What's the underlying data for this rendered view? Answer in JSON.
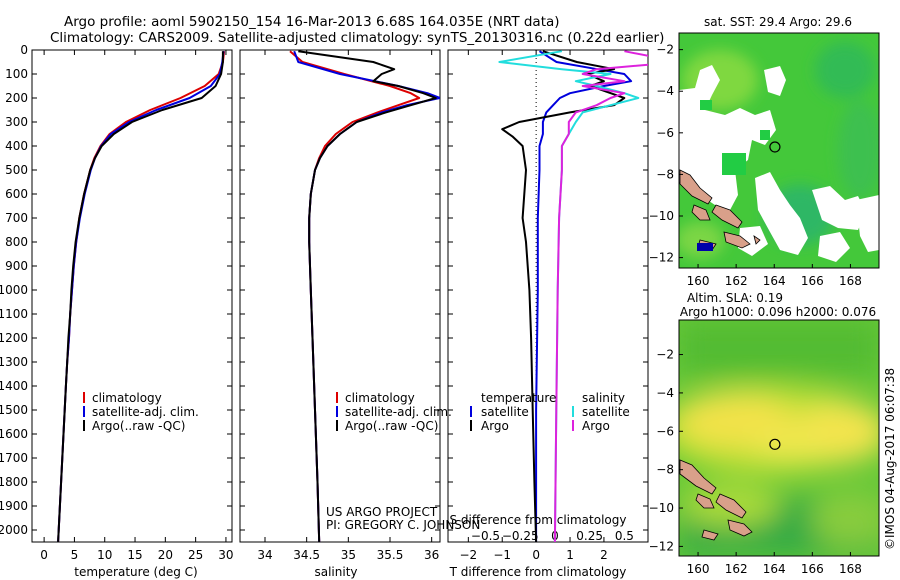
{
  "header": {
    "line1": "Argo profile: aoml 5902150_154 16-Mar-2013 6.68S 164.035E (NRT data)",
    "line2": "Climatology: CARS2009. Satellite-adjusted climatology: synTS_20130316.nc (0.22d earlier)"
  },
  "footer": {
    "project": "US ARGO PROJECT",
    "pi": "PI: GREGORY C. JOHNSON",
    "stamp": "©IMOS 04-Aug-2017 06:07:38"
  },
  "colors": {
    "climatology": "#dd0000",
    "satellite": "#0000dd",
    "argo": "#000000",
    "sal_satellite": "#22dddd",
    "sal_argo": "#dd22dd"
  },
  "chart_data": [
    {
      "id": "temperature",
      "type": "line",
      "xlabel": "temperature (deg C)",
      "ylabel": "",
      "xlim": [
        -2,
        31
      ],
      "ylim": [
        2050,
        0
      ],
      "xticks": [
        0,
        5,
        10,
        15,
        20,
        25,
        30
      ],
      "yticks": [
        0,
        100,
        200,
        300,
        400,
        500,
        600,
        700,
        800,
        900,
        1000,
        1100,
        1200,
        1300,
        1400,
        1500,
        1600,
        1700,
        1800,
        1900,
        2000
      ],
      "legend": [
        "climatology",
        "satellite-adj. clim.",
        "Argo(..raw -QC)"
      ],
      "legend_position": "bottom-left",
      "series": [
        {
          "name": "climatology",
          "color": "#dd0000",
          "depth": [
            5,
            50,
            100,
            150,
            200,
            250,
            300,
            350,
            400,
            450,
            500,
            600,
            700,
            800,
            900,
            1000,
            1100,
            1200,
            1300,
            1400,
            1500,
            1600,
            1700,
            1800,
            1900,
            2000,
            2050
          ],
          "values": [
            29.7,
            29.5,
            28.8,
            26.5,
            22.5,
            17.5,
            13.5,
            10.8,
            9.3,
            8.3,
            7.6,
            6.6,
            5.8,
            5.3,
            4.9,
            4.6,
            4.3,
            4.1,
            3.8,
            3.6,
            3.4,
            3.2,
            3.0,
            2.8,
            2.6,
            2.4,
            2.3
          ]
        },
        {
          "name": "satellite-adj. clim.",
          "color": "#0000dd",
          "depth": [
            5,
            50,
            100,
            150,
            200,
            250,
            300,
            350,
            400,
            450,
            500,
            600,
            700,
            800,
            900,
            1000,
            1100,
            1200,
            1300,
            1400,
            1500,
            1600,
            1700,
            1800,
            1900,
            2000,
            2050
          ],
          "values": [
            29.6,
            29.4,
            29.0,
            27.5,
            24.0,
            18.5,
            14.0,
            11.0,
            9.4,
            8.4,
            7.7,
            6.7,
            5.9,
            5.3,
            4.9,
            4.6,
            4.3,
            4.1,
            3.8,
            3.6,
            3.4,
            3.2,
            3.0,
            2.8,
            2.6,
            2.4,
            2.3
          ]
        },
        {
          "name": "Argo(..raw -QC)",
          "color": "#000000",
          "depth": [
            5,
            50,
            100,
            150,
            200,
            250,
            300,
            350,
            400,
            450,
            500,
            600,
            700,
            800,
            900,
            1000,
            1100,
            1200,
            1300,
            1400,
            1500,
            1600,
            1700,
            1800,
            1900,
            2000,
            2050
          ],
          "values": [
            29.5,
            29.5,
            29.2,
            28.3,
            26.0,
            19.5,
            14.5,
            11.5,
            9.5,
            8.4,
            7.6,
            6.6,
            5.8,
            5.2,
            4.8,
            4.5,
            4.3,
            4.0,
            3.8,
            3.6,
            3.4,
            3.2,
            3.0,
            2.8,
            2.6,
            2.4,
            2.3
          ]
        }
      ]
    },
    {
      "id": "salinity",
      "type": "line",
      "xlabel": "salinity",
      "xlim": [
        33.7,
        36.1
      ],
      "ylim": [
        2050,
        0
      ],
      "xticks": [
        34,
        34.5,
        35,
        35.5,
        36
      ],
      "xticklabels": [
        "34",
        "34.5",
        "35",
        "35.5",
        "36"
      ],
      "legend": [
        "climatology",
        "satellite-adj. clim.",
        "Argo(..raw -QC)"
      ],
      "legend_position": "bottom-right",
      "series": [
        {
          "name": "climatology",
          "color": "#dd0000",
          "depth": [
            5,
            50,
            100,
            150,
            180,
            200,
            230,
            260,
            300,
            350,
            400,
            450,
            500,
            600,
            700,
            800,
            1000,
            1200,
            1500,
            1800,
            2050
          ],
          "values": [
            34.3,
            34.45,
            34.95,
            35.5,
            35.75,
            35.85,
            35.6,
            35.35,
            35.05,
            34.85,
            34.72,
            34.65,
            34.6,
            34.55,
            34.53,
            34.53,
            34.55,
            34.57,
            34.6,
            34.63,
            34.65
          ]
        },
        {
          "name": "satellite-adj. clim.",
          "color": "#0000dd",
          "depth": [
            5,
            50,
            100,
            150,
            180,
            200,
            230,
            260,
            300,
            350,
            400,
            450,
            500,
            600,
            700,
            800,
            1000,
            1200,
            1500,
            1800,
            2050
          ],
          "values": [
            34.35,
            34.4,
            34.9,
            35.6,
            35.95,
            36.1,
            35.7,
            35.4,
            35.1,
            34.9,
            34.75,
            34.66,
            34.6,
            34.55,
            34.53,
            34.53,
            34.55,
            34.57,
            34.6,
            34.63,
            34.65
          ]
        },
        {
          "name": "Argo(..raw -QC)",
          "color": "#000000",
          "depth": [
            5,
            50,
            80,
            100,
            130,
            150,
            180,
            200,
            230,
            260,
            300,
            350,
            400,
            450,
            500,
            600,
            700,
            800,
            1000,
            1200,
            1500,
            1800,
            2050
          ],
          "values": [
            34.4,
            35.3,
            35.55,
            35.4,
            35.3,
            35.6,
            35.9,
            36.05,
            35.75,
            35.45,
            35.1,
            34.9,
            34.75,
            34.66,
            34.6,
            34.55,
            34.53,
            34.53,
            34.55,
            34.57,
            34.6,
            34.63,
            34.65
          ]
        }
      ]
    },
    {
      "id": "differences",
      "type": "line",
      "xlabel": "T difference from climatology",
      "xlabel_top": "S difference from climatology",
      "xlim": [
        -2.6,
        3.3
      ],
      "ylim": [
        2050,
        0
      ],
      "xticks": [
        -2,
        -1,
        0,
        1,
        2
      ],
      "xticks_top": [
        -0.5,
        -0.25,
        0,
        0.25,
        0.5
      ],
      "legend_temperature": {
        "title": "temperature",
        "items": [
          "satellite",
          "Argo"
        ]
      },
      "legend_salinity": {
        "title": "salinity",
        "items": [
          "satellite",
          "Argo"
        ]
      },
      "legend_position": "middle",
      "series": [
        {
          "name": "temperature satellite",
          "color": "#0000dd",
          "depth": [
            5,
            50,
            80,
            100,
            130,
            150,
            180,
            200,
            230,
            260,
            300,
            350,
            400,
            500,
            700,
            1000,
            1500,
            2050
          ],
          "values": [
            0.1,
            0.6,
            1.8,
            2.6,
            2.8,
            2.0,
            1.0,
            0.7,
            0.5,
            0.3,
            0.2,
            0.2,
            0.1,
            0.1,
            0.05,
            0.05,
            0.0,
            0.0
          ]
        },
        {
          "name": "temperature Argo",
          "color": "#000000",
          "depth": [
            5,
            50,
            80,
            100,
            130,
            150,
            180,
            200,
            230,
            260,
            300,
            330,
            360,
            400,
            450,
            500,
            600,
            700,
            800,
            1000,
            1200,
            1500,
            1800,
            2050
          ],
          "values": [
            0.2,
            1.2,
            2.3,
            1.5,
            2.0,
            1.6,
            2.2,
            2.6,
            2.3,
            1.0,
            -0.5,
            -1.0,
            -0.7,
            -0.4,
            -0.35,
            -0.3,
            -0.35,
            -0.4,
            -0.3,
            -0.2,
            -0.15,
            -0.1,
            -0.05,
            0.0
          ]
        },
        {
          "name": "salinity satellite",
          "color": "#22dddd",
          "depth": [
            5,
            50,
            80,
            100,
            130,
            150,
            180,
            200,
            230,
            260,
            300,
            350,
            400,
            500,
            700,
            1000,
            1500,
            2050
          ],
          "values": [
            0.05,
            -0.4,
            0.05,
            0.4,
            0.15,
            0.3,
            0.5,
            0.6,
            0.4,
            0.2,
            0.15,
            0.1,
            0.05,
            0.05,
            0.03,
            0.02,
            0.01,
            0.0
          ]
        },
        {
          "name": "salinity Argo",
          "color": "#dd22dd",
          "depth": [
            5,
            50,
            80,
            100,
            130,
            150,
            180,
            200,
            230,
            260,
            300,
            350,
            400,
            500,
            700,
            1000,
            1500,
            2050
          ],
          "values": [
            0.5,
            0.9,
            0.3,
            0.2,
            0.5,
            0.2,
            0.5,
            0.4,
            0.3,
            0.15,
            0.1,
            0.1,
            0.05,
            0.05,
            0.03,
            0.02,
            0.01,
            0.0
          ]
        }
      ]
    },
    {
      "id": "sst-map",
      "type": "heatmap",
      "title": "sat. SST: 29.4  Argo: 29.6",
      "xlim": [
        159,
        169.5
      ],
      "ylim": [
        -12.5,
        -1.2
      ],
      "xticks": [
        160,
        162,
        164,
        166,
        168
      ],
      "yticks": [
        -2,
        -4,
        -6,
        -8,
        -10,
        -12
      ],
      "float_position": {
        "lon": 164.035,
        "lat": -6.68
      }
    },
    {
      "id": "sla-map",
      "type": "heatmap",
      "title_line1": "Altim. SLA: 0.19",
      "title_line2": "Argo h1000: 0.096 h2000: 0.076",
      "xlim": [
        159,
        169.5
      ],
      "ylim": [
        -12.5,
        -0.2
      ],
      "xticks": [
        160,
        162,
        164,
        166,
        168
      ],
      "yticks": [
        -2,
        -4,
        -6,
        -8,
        -10,
        -12
      ],
      "float_position": {
        "lon": 164.035,
        "lat": -6.68
      }
    }
  ]
}
